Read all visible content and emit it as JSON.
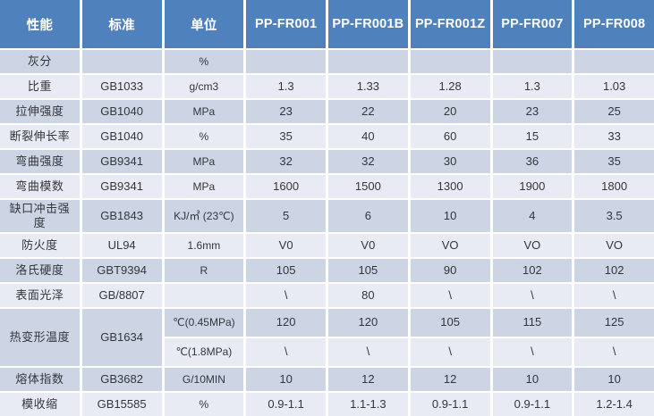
{
  "chart_data": {
    "type": "table",
    "columns": [
      "性能",
      "标准",
      "单位",
      "PP-FR001",
      "PP-FR001B",
      "PP-FR001Z",
      "PP-FR007",
      "PP-FR008"
    ],
    "rows": [
      {
        "property": "灰分",
        "standard": "",
        "unit": "%",
        "values": [
          "",
          "",
          "",
          "",
          ""
        ]
      },
      {
        "property": "比重",
        "standard": "GB1033",
        "unit": "g/cm3",
        "values": [
          "1.3",
          "1.33",
          "1.28",
          "1.3",
          "1.03"
        ]
      },
      {
        "property": "拉伸强度",
        "standard": "GB1040",
        "unit": "MPa",
        "values": [
          "23",
          "22",
          "20",
          "23",
          "25"
        ]
      },
      {
        "property": "断裂伸长率",
        "standard": "GB1040",
        "unit": "%",
        "values": [
          "35",
          "40",
          "60",
          "15",
          "33"
        ]
      },
      {
        "property": "弯曲强度",
        "standard": "GB9341",
        "unit": "MPa",
        "values": [
          "32",
          "32",
          "30",
          "36",
          "35"
        ]
      },
      {
        "property": "弯曲模数",
        "standard": "GB9341",
        "unit": "MPa",
        "values": [
          "1600",
          "1500",
          "1300",
          "1900",
          "1800"
        ]
      },
      {
        "property": "缺口冲击强度",
        "standard": "GB1843",
        "unit": "KJ/㎡ (23℃)",
        "values": [
          "5",
          "6",
          "10",
          "4",
          "3.5"
        ]
      },
      {
        "property": "防火度",
        "standard": "UL94",
        "unit": "1.6mm",
        "values": [
          "V0",
          "V0",
          "VO",
          "VO",
          "VO"
        ]
      },
      {
        "property": "洛氏硬度",
        "standard": "GBT9394",
        "unit": "R",
        "values": [
          "105",
          "105",
          "90",
          "102",
          "102"
        ]
      },
      {
        "property": "表面光泽",
        "standard": "GB/8807",
        "unit": "",
        "values": [
          "\\",
          "80",
          "\\",
          "\\",
          "\\"
        ]
      },
      {
        "property": "热变形温度",
        "standard": "GB1634",
        "rowspan": 2,
        "unit": "℃(0.45MPa)",
        "values": [
          "120",
          "120",
          "105",
          "115",
          "125"
        ]
      },
      {
        "continuation": true,
        "unit": "℃(1.8MPa)",
        "values": [
          "\\",
          "\\",
          "\\",
          "\\",
          "\\"
        ]
      },
      {
        "property": "熔体指数",
        "standard": "GB3682",
        "unit": "G/10MIN",
        "values": [
          "10",
          "12",
          "12",
          "10",
          "10"
        ]
      },
      {
        "property": "模收缩",
        "standard": "GB15585",
        "unit": "%",
        "values": [
          "0.9-1.1",
          "1.1-1.3",
          "0.9-1.1",
          "0.9-1.1",
          "1.2-1.4"
        ]
      }
    ]
  },
  "colors": {
    "header_bg": "#4f81bd",
    "header_text": "#ffffff",
    "band_dark": "#cdd4e4",
    "band_light": "#e9ebf4",
    "grid": "#ffffff",
    "body_text": "#33363b"
  }
}
